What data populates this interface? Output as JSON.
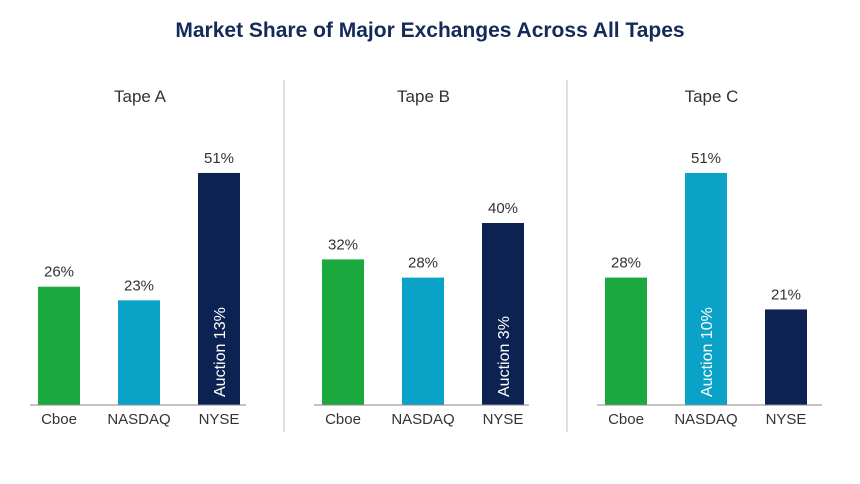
{
  "title": "Market Share of Major Exchanges Across All Tapes",
  "colors": {
    "Cboe": "#1aa83f",
    "NASDAQ": "#0aa2c6",
    "NYSE": "#0c2253"
  },
  "chart_data": [
    {
      "type": "bar",
      "title": "Tape A",
      "categories": [
        "Cboe",
        "NASDAQ",
        "NYSE"
      ],
      "values": [
        26,
        23,
        51
      ],
      "value_labels": [
        "26%",
        "23%",
        "51%"
      ],
      "annotations": [
        {
          "category": "NYSE",
          "text": "Auction 13%"
        }
      ],
      "ylim": [
        0,
        60
      ]
    },
    {
      "type": "bar",
      "title": "Tape B",
      "categories": [
        "Cboe",
        "NASDAQ",
        "NYSE"
      ],
      "values": [
        32,
        28,
        40
      ],
      "value_labels": [
        "32%",
        "28%",
        "40%"
      ],
      "annotations": [
        {
          "category": "NYSE",
          "text": "Auction 3%"
        }
      ],
      "ylim": [
        0,
        60
      ]
    },
    {
      "type": "bar",
      "title": "Tape C",
      "categories": [
        "Cboe",
        "NASDAQ",
        "NYSE"
      ],
      "values": [
        28,
        51,
        21
      ],
      "value_labels": [
        "28%",
        "51%",
        "21%"
      ],
      "annotations": [
        {
          "category": "NASDAQ",
          "text": "Auction 10%"
        }
      ],
      "ylim": [
        0,
        60
      ]
    }
  ]
}
